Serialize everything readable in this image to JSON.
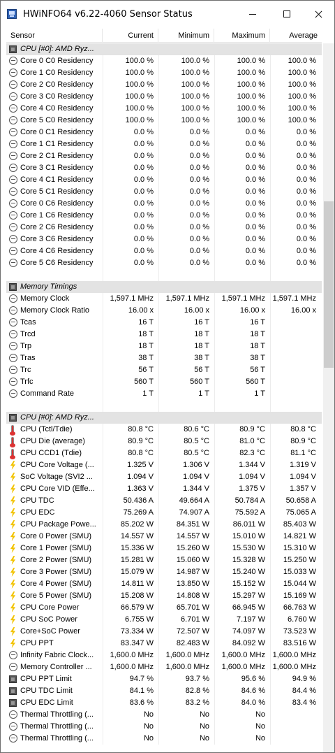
{
  "window": {
    "title": "HWiNFO64 v6.22-4060 Sensor Status"
  },
  "icons": {
    "app": "hwinfo-app-icon"
  },
  "columns": {
    "sensor": "Sensor",
    "current": "Current",
    "minimum": "Minimum",
    "maximum": "Maximum",
    "average": "Average"
  },
  "rows": [
    {
      "type": "group",
      "name": "CPU [#0]: AMD Ryz..."
    },
    {
      "type": "sensor",
      "icon": "clock",
      "name": "Core 0 C0 Residency",
      "cur": "100.0 %",
      "min": "100.0 %",
      "max": "100.0 %",
      "avg": "100.0 %"
    },
    {
      "type": "sensor",
      "icon": "clock",
      "name": "Core 1 C0 Residency",
      "cur": "100.0 %",
      "min": "100.0 %",
      "max": "100.0 %",
      "avg": "100.0 %"
    },
    {
      "type": "sensor",
      "icon": "clock",
      "name": "Core 2 C0 Residency",
      "cur": "100.0 %",
      "min": "100.0 %",
      "max": "100.0 %",
      "avg": "100.0 %"
    },
    {
      "type": "sensor",
      "icon": "clock",
      "name": "Core 3 C0 Residency",
      "cur": "100.0 %",
      "min": "100.0 %",
      "max": "100.0 %",
      "avg": "100.0 %"
    },
    {
      "type": "sensor",
      "icon": "clock",
      "name": "Core 4 C0 Residency",
      "cur": "100.0 %",
      "min": "100.0 %",
      "max": "100.0 %",
      "avg": "100.0 %"
    },
    {
      "type": "sensor",
      "icon": "clock",
      "name": "Core 5 C0 Residency",
      "cur": "100.0 %",
      "min": "100.0 %",
      "max": "100.0 %",
      "avg": "100.0 %"
    },
    {
      "type": "sensor",
      "icon": "clock",
      "name": "Core 0 C1 Residency",
      "cur": "0.0 %",
      "min": "0.0 %",
      "max": "0.0 %",
      "avg": "0.0 %"
    },
    {
      "type": "sensor",
      "icon": "clock",
      "name": "Core 1 C1 Residency",
      "cur": "0.0 %",
      "min": "0.0 %",
      "max": "0.0 %",
      "avg": "0.0 %"
    },
    {
      "type": "sensor",
      "icon": "clock",
      "name": "Core 2 C1 Residency",
      "cur": "0.0 %",
      "min": "0.0 %",
      "max": "0.0 %",
      "avg": "0.0 %"
    },
    {
      "type": "sensor",
      "icon": "clock",
      "name": "Core 3 C1 Residency",
      "cur": "0.0 %",
      "min": "0.0 %",
      "max": "0.0 %",
      "avg": "0.0 %"
    },
    {
      "type": "sensor",
      "icon": "clock",
      "name": "Core 4 C1 Residency",
      "cur": "0.0 %",
      "min": "0.0 %",
      "max": "0.0 %",
      "avg": "0.0 %"
    },
    {
      "type": "sensor",
      "icon": "clock",
      "name": "Core 5 C1 Residency",
      "cur": "0.0 %",
      "min": "0.0 %",
      "max": "0.0 %",
      "avg": "0.0 %"
    },
    {
      "type": "sensor",
      "icon": "clock",
      "name": "Core 0 C6 Residency",
      "cur": "0.0 %",
      "min": "0.0 %",
      "max": "0.0 %",
      "avg": "0.0 %"
    },
    {
      "type": "sensor",
      "icon": "clock",
      "name": "Core 1 C6 Residency",
      "cur": "0.0 %",
      "min": "0.0 %",
      "max": "0.0 %",
      "avg": "0.0 %"
    },
    {
      "type": "sensor",
      "icon": "clock",
      "name": "Core 2 C6 Residency",
      "cur": "0.0 %",
      "min": "0.0 %",
      "max": "0.0 %",
      "avg": "0.0 %"
    },
    {
      "type": "sensor",
      "icon": "clock",
      "name": "Core 3 C6 Residency",
      "cur": "0.0 %",
      "min": "0.0 %",
      "max": "0.0 %",
      "avg": "0.0 %"
    },
    {
      "type": "sensor",
      "icon": "clock",
      "name": "Core 4 C6 Residency",
      "cur": "0.0 %",
      "min": "0.0 %",
      "max": "0.0 %",
      "avg": "0.0 %"
    },
    {
      "type": "sensor",
      "icon": "clock",
      "name": "Core 5 C6 Residency",
      "cur": "0.0 %",
      "min": "0.0 %",
      "max": "0.0 %",
      "avg": "0.0 %"
    },
    {
      "type": "blank"
    },
    {
      "type": "group",
      "name": "Memory Timings"
    },
    {
      "type": "sensor",
      "icon": "clock",
      "name": "Memory Clock",
      "cur": "1,597.1 MHz",
      "min": "1,597.1 MHz",
      "max": "1,597.1 MHz",
      "avg": "1,597.1 MHz"
    },
    {
      "type": "sensor",
      "icon": "clock",
      "name": "Memory Clock Ratio",
      "cur": "16.00 x",
      "min": "16.00 x",
      "max": "16.00 x",
      "avg": "16.00 x"
    },
    {
      "type": "sensor",
      "icon": "clock",
      "name": "Tcas",
      "cur": "16 T",
      "min": "16 T",
      "max": "16 T",
      "avg": ""
    },
    {
      "type": "sensor",
      "icon": "clock",
      "name": "Trcd",
      "cur": "18 T",
      "min": "18 T",
      "max": "18 T",
      "avg": ""
    },
    {
      "type": "sensor",
      "icon": "clock",
      "name": "Trp",
      "cur": "18 T",
      "min": "18 T",
      "max": "18 T",
      "avg": ""
    },
    {
      "type": "sensor",
      "icon": "clock",
      "name": "Tras",
      "cur": "38 T",
      "min": "38 T",
      "max": "38 T",
      "avg": ""
    },
    {
      "type": "sensor",
      "icon": "clock",
      "name": "Trc",
      "cur": "56 T",
      "min": "56 T",
      "max": "56 T",
      "avg": ""
    },
    {
      "type": "sensor",
      "icon": "clock",
      "name": "Trfc",
      "cur": "560 T",
      "min": "560 T",
      "max": "560 T",
      "avg": ""
    },
    {
      "type": "sensor",
      "icon": "clock",
      "name": "Command Rate",
      "cur": "1 T",
      "min": "1 T",
      "max": "1 T",
      "avg": ""
    },
    {
      "type": "blank"
    },
    {
      "type": "group",
      "name": "CPU [#0]: AMD Ryz..."
    },
    {
      "type": "sensor",
      "icon": "therm",
      "name": "CPU (Tctl/Tdie)",
      "cur": "80.8 °C",
      "min": "80.6 °C",
      "max": "80.9 °C",
      "avg": "80.8 °C"
    },
    {
      "type": "sensor",
      "icon": "therm",
      "name": "CPU Die (average)",
      "cur": "80.9 °C",
      "min": "80.5 °C",
      "max": "81.0 °C",
      "avg": "80.9 °C"
    },
    {
      "type": "sensor",
      "icon": "therm",
      "name": "CPU CCD1 (Tdie)",
      "cur": "80.8 °C",
      "min": "80.5 °C",
      "max": "82.3 °C",
      "avg": "81.1 °C"
    },
    {
      "type": "sensor",
      "icon": "bolt",
      "name": "CPU Core Voltage (...",
      "cur": "1.325 V",
      "min": "1.306 V",
      "max": "1.344 V",
      "avg": "1.319 V"
    },
    {
      "type": "sensor",
      "icon": "bolt",
      "name": "SoC Voltage (SVI2 ...",
      "cur": "1.094 V",
      "min": "1.094 V",
      "max": "1.094 V",
      "avg": "1.094 V"
    },
    {
      "type": "sensor",
      "icon": "bolt",
      "name": "CPU Core VID (Effe...",
      "cur": "1.363 V",
      "min": "1.344 V",
      "max": "1.375 V",
      "avg": "1.357 V"
    },
    {
      "type": "sensor",
      "icon": "bolt",
      "name": "CPU TDC",
      "cur": "50.436 A",
      "min": "49.664 A",
      "max": "50.784 A",
      "avg": "50.658 A"
    },
    {
      "type": "sensor",
      "icon": "bolt",
      "name": "CPU EDC",
      "cur": "75.269 A",
      "min": "74.907 A",
      "max": "75.592 A",
      "avg": "75.065 A"
    },
    {
      "type": "sensor",
      "icon": "bolt",
      "name": "CPU Package Powe...",
      "cur": "85.202 W",
      "min": "84.351 W",
      "max": "86.011 W",
      "avg": "85.403 W"
    },
    {
      "type": "sensor",
      "icon": "bolt",
      "name": "Core 0 Power (SMU)",
      "cur": "14.557 W",
      "min": "14.557 W",
      "max": "15.010 W",
      "avg": "14.821 W"
    },
    {
      "type": "sensor",
      "icon": "bolt",
      "name": "Core 1 Power (SMU)",
      "cur": "15.336 W",
      "min": "15.260 W",
      "max": "15.530 W",
      "avg": "15.310 W"
    },
    {
      "type": "sensor",
      "icon": "bolt",
      "name": "Core 2 Power (SMU)",
      "cur": "15.281 W",
      "min": "15.060 W",
      "max": "15.328 W",
      "avg": "15.250 W"
    },
    {
      "type": "sensor",
      "icon": "bolt",
      "name": "Core 3 Power (SMU)",
      "cur": "15.079 W",
      "min": "14.987 W",
      "max": "15.240 W",
      "avg": "15.033 W"
    },
    {
      "type": "sensor",
      "icon": "bolt",
      "name": "Core 4 Power (SMU)",
      "cur": "14.811 W",
      "min": "13.850 W",
      "max": "15.152 W",
      "avg": "15.044 W"
    },
    {
      "type": "sensor",
      "icon": "bolt",
      "name": "Core 5 Power (SMU)",
      "cur": "15.208 W",
      "min": "14.808 W",
      "max": "15.297 W",
      "avg": "15.169 W"
    },
    {
      "type": "sensor",
      "icon": "bolt",
      "name": "CPU Core Power",
      "cur": "66.579 W",
      "min": "65.701 W",
      "max": "66.945 W",
      "avg": "66.763 W"
    },
    {
      "type": "sensor",
      "icon": "bolt",
      "name": "CPU SoC Power",
      "cur": "6.755 W",
      "min": "6.701 W",
      "max": "7.197 W",
      "avg": "6.760 W"
    },
    {
      "type": "sensor",
      "icon": "bolt",
      "name": "Core+SoC Power",
      "cur": "73.334 W",
      "min": "72.507 W",
      "max": "74.097 W",
      "avg": "73.523 W"
    },
    {
      "type": "sensor",
      "icon": "bolt",
      "name": "CPU PPT",
      "cur": "83.347 W",
      "min": "82.483 W",
      "max": "84.092 W",
      "avg": "83.516 W"
    },
    {
      "type": "sensor",
      "icon": "clock",
      "name": "Infinity Fabric Clock...",
      "cur": "1,600.0 MHz",
      "min": "1,600.0 MHz",
      "max": "1,600.0 MHz",
      "avg": "1,600.0 MHz"
    },
    {
      "type": "sensor",
      "icon": "clock",
      "name": "Memory Controller ...",
      "cur": "1,600.0 MHz",
      "min": "1,600.0 MHz",
      "max": "1,600.0 MHz",
      "avg": "1,600.0 MHz"
    },
    {
      "type": "sensor",
      "icon": "chip",
      "name": "CPU PPT Limit",
      "cur": "94.7 %",
      "min": "93.7 %",
      "max": "95.6 %",
      "avg": "94.9 %"
    },
    {
      "type": "sensor",
      "icon": "chip",
      "name": "CPU TDC Limit",
      "cur": "84.1 %",
      "min": "82.8 %",
      "max": "84.6 %",
      "avg": "84.4 %"
    },
    {
      "type": "sensor",
      "icon": "chip",
      "name": "CPU EDC Limit",
      "cur": "83.6 %",
      "min": "83.2 %",
      "max": "84.0 %",
      "avg": "83.4 %"
    },
    {
      "type": "sensor",
      "icon": "clock",
      "name": "Thermal Throttling (...",
      "cur": "No",
      "min": "No",
      "max": "No",
      "avg": ""
    },
    {
      "type": "sensor",
      "icon": "clock",
      "name": "Thermal Throttling (...",
      "cur": "No",
      "min": "No",
      "max": "No",
      "avg": ""
    },
    {
      "type": "sensor",
      "icon": "clock",
      "name": "Thermal Throttling (...",
      "cur": "No",
      "min": "No",
      "max": "No",
      "avg": ""
    }
  ]
}
